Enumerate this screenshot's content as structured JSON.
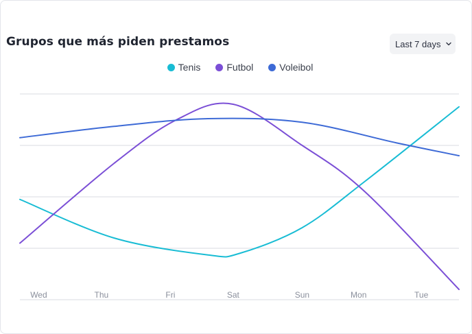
{
  "header": {
    "title": "Grupos que más piden prestamos",
    "range_label": "Last 7 days"
  },
  "chart_data": {
    "type": "line",
    "title": "Grupos que más piden prestamos",
    "legend_position": "top-center",
    "grid": true,
    "ylim": [
      0,
      4
    ],
    "categories": [
      "Wed",
      "Thu",
      "Fri",
      "Sat",
      "Sun",
      "Mon",
      "Tue"
    ],
    "x_positions": [
      0.3,
      1.3,
      2.4,
      3.4,
      4.5,
      5.4,
      6.4
    ],
    "xlim": [
      0,
      7
    ],
    "series": [
      {
        "name": "Tenis",
        "color": "#18bcd4",
        "x": [
          0,
          1.5,
          3.0,
          3.5,
          4.5,
          5.5,
          7.0
        ],
        "values": [
          1.95,
          1.2,
          0.87,
          0.9,
          1.4,
          2.3,
          3.75
        ]
      },
      {
        "name": "Futbol",
        "color": "#7b4fd6",
        "x": [
          0,
          1.5,
          2.5,
          3.4,
          4.5,
          5.5,
          7.0
        ],
        "values": [
          1.1,
          2.65,
          3.5,
          3.8,
          3.0,
          2.1,
          0.2
        ]
      },
      {
        "name": "Voleibol",
        "color": "#3d6ad6",
        "x": [
          0,
          1.5,
          3.0,
          4.5,
          6.0,
          7.0
        ],
        "values": [
          3.15,
          3.37,
          3.52,
          3.45,
          3.05,
          2.8
        ]
      }
    ]
  }
}
